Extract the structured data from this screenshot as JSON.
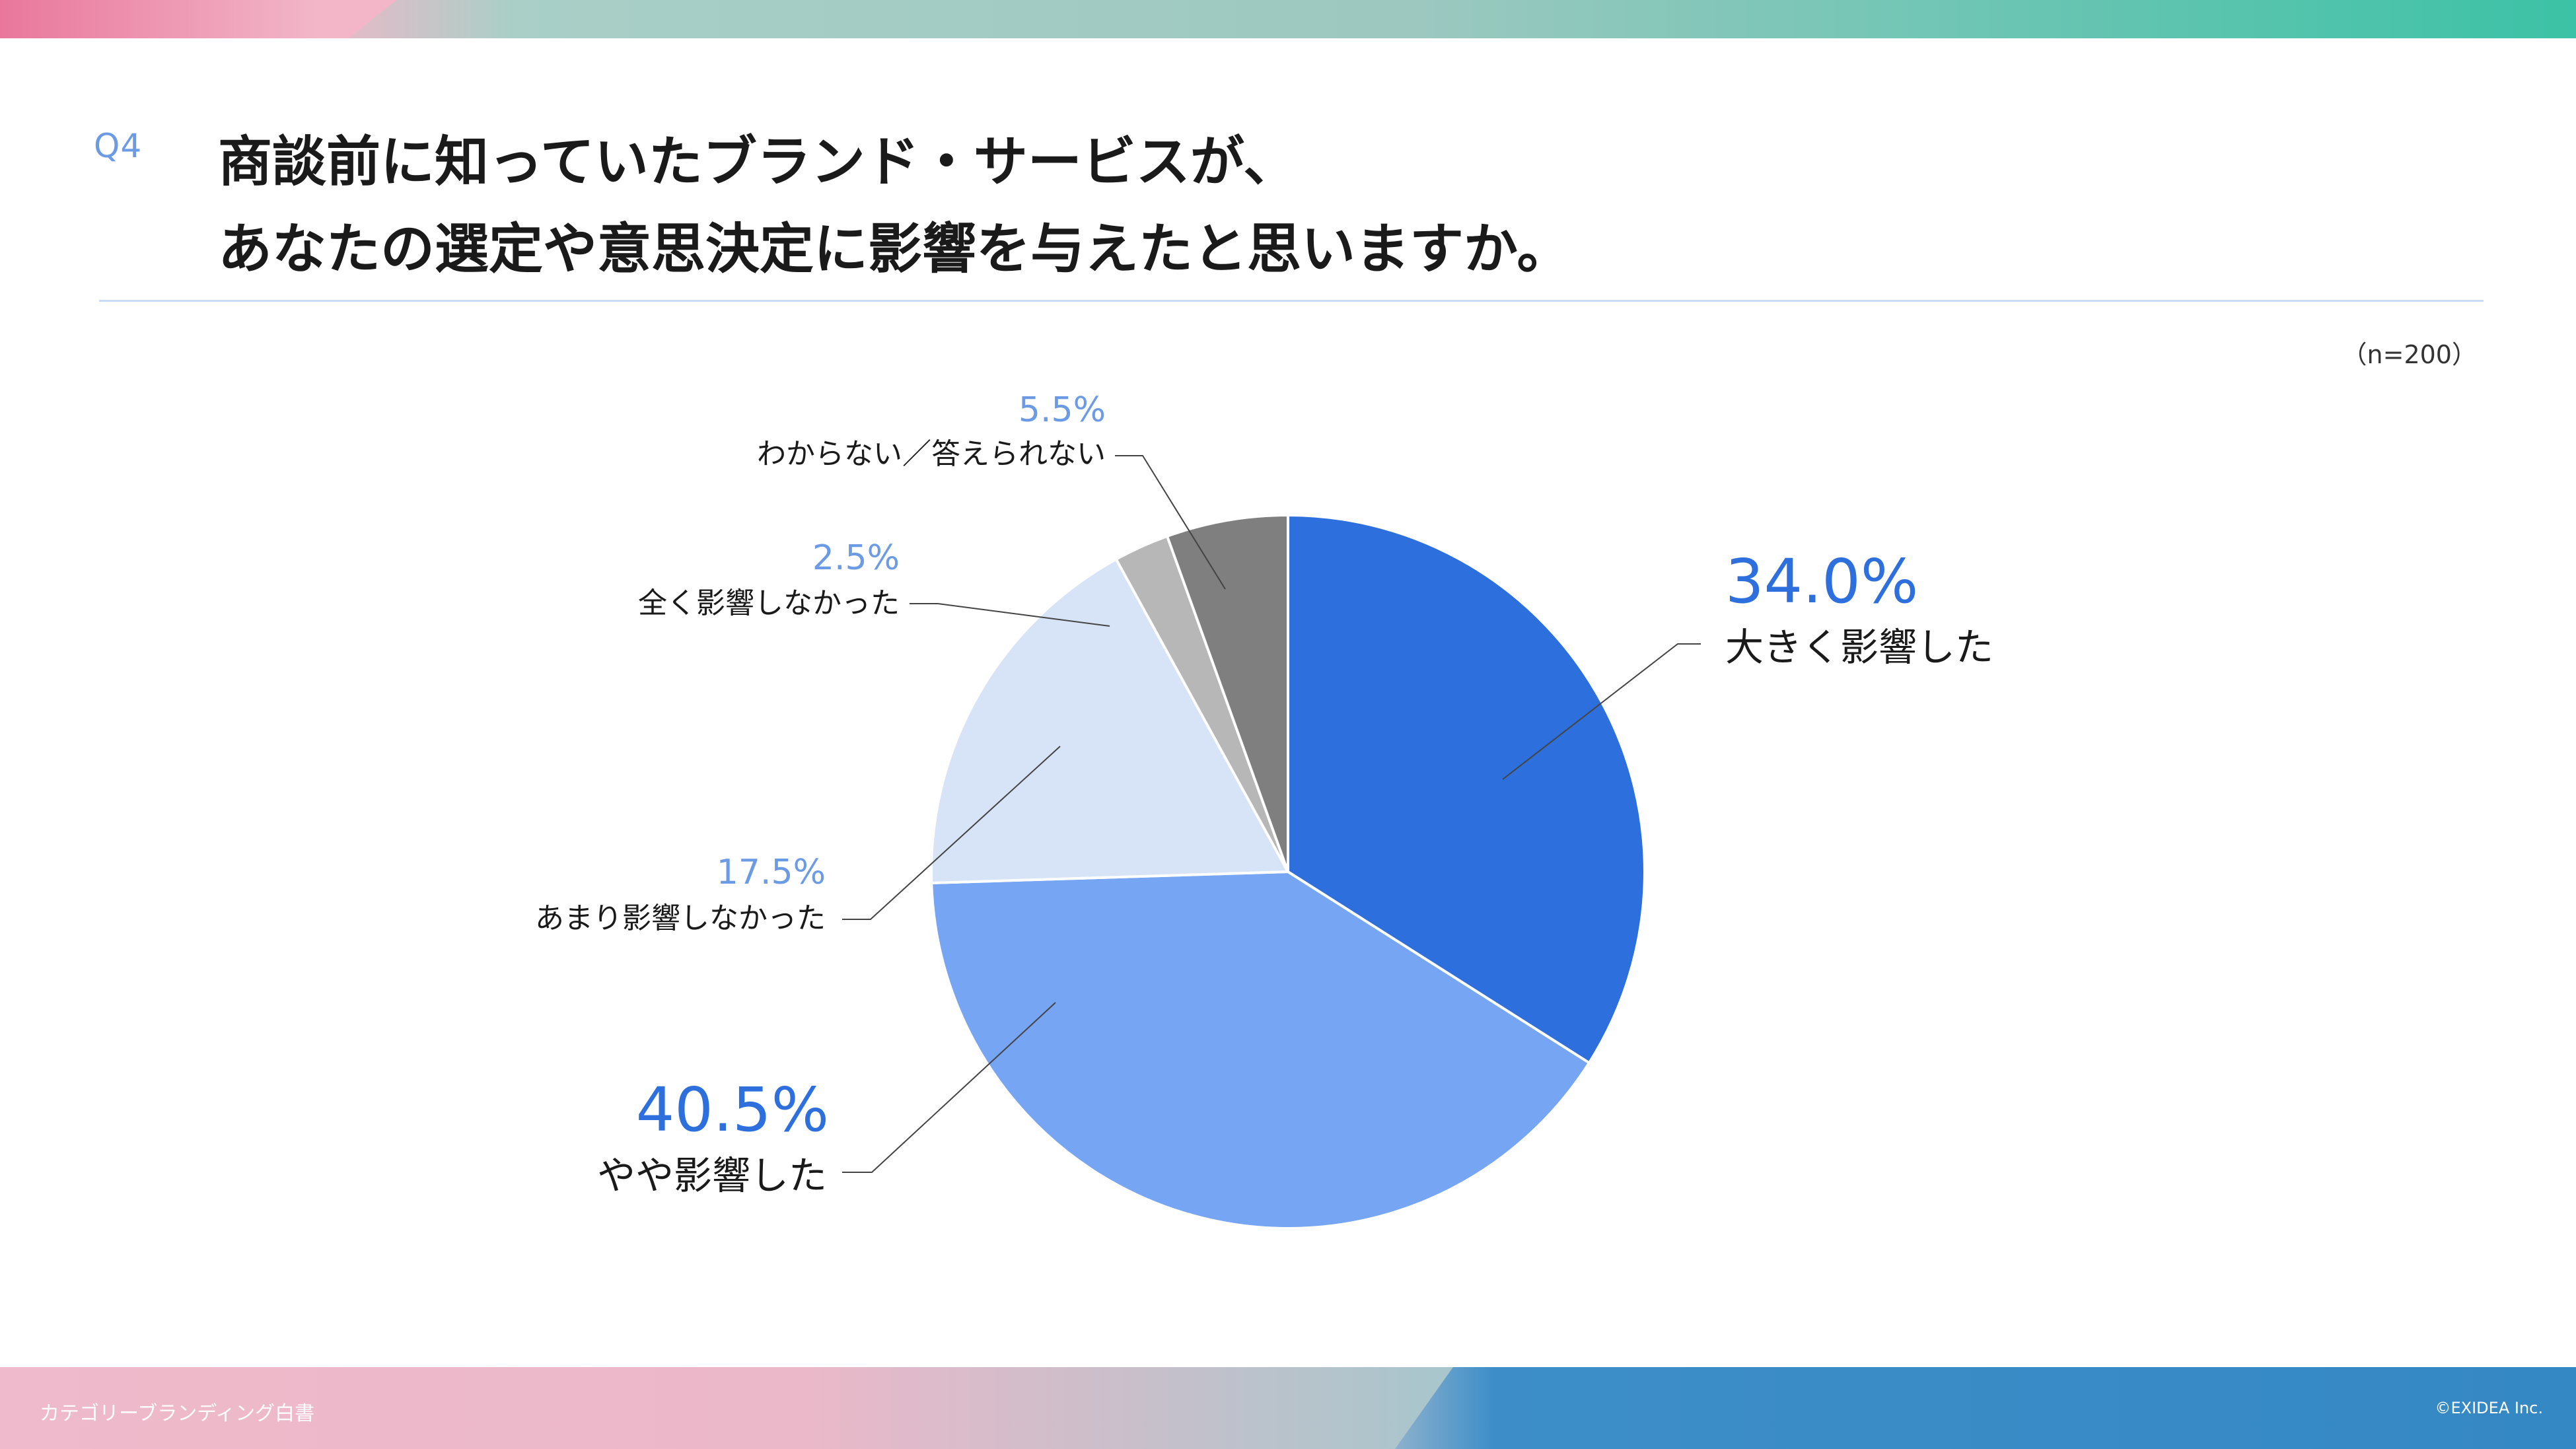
{
  "header": {
    "q_label": "Q4",
    "title_line1": "商談前に知っていたブランド・サービスが、",
    "title_line2": "あなたの選定や意思決定に影響を与えたと思いますか。",
    "sample": "（n=200）"
  },
  "footer": {
    "left": "カテゴリーブランディング白書",
    "right": "©EXIDEA Inc."
  },
  "colors": {
    "accent_text": "#2e6fde",
    "light_text": "#6c9be6"
  },
  "chart_data": {
    "type": "pie",
    "title": "",
    "series": [
      {
        "label": "大きく影響した",
        "value": 34.0,
        "value_text": "34.0%",
        "color": "#2e6fde"
      },
      {
        "label": "やや影響した",
        "value": 40.5,
        "value_text": "40.5%",
        "color": "#76a5f4"
      },
      {
        "label": "あまり影響しなかった",
        "value": 17.5,
        "value_text": "17.5%",
        "color": "#d7e4f8"
      },
      {
        "label": "全く影響しなかった",
        "value": 2.5,
        "value_text": "2.5%",
        "color": "#b7b7b7"
      },
      {
        "label": "わからない／答えられない",
        "value": 5.5,
        "value_text": "5.5%",
        "color": "#7f7f7f"
      }
    ]
  }
}
